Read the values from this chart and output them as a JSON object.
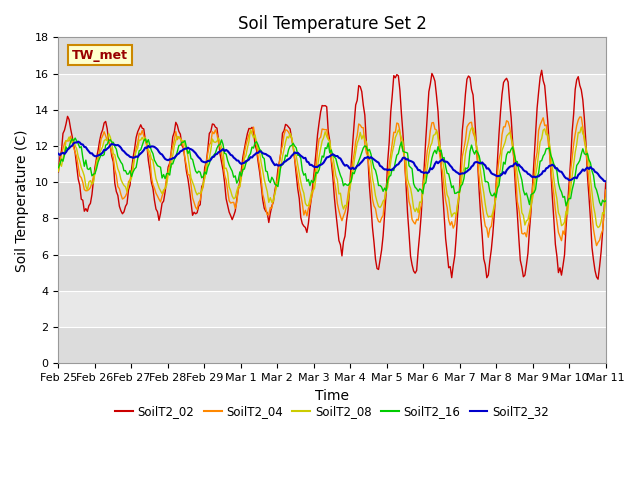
{
  "title": "Soil Temperature Set 2",
  "xlabel": "Time",
  "ylabel": "Soil Temperature (C)",
  "ylim": [
    0,
    18
  ],
  "yticks": [
    0,
    2,
    4,
    6,
    8,
    10,
    12,
    14,
    16,
    18
  ],
  "date_labels": [
    "Feb 25",
    "Feb 26",
    "Feb 27",
    "Feb 28",
    "Feb 29",
    "Mar 1",
    "Mar 2",
    "Mar 3",
    "Mar 4",
    "Mar 5",
    "Mar 6",
    "Mar 7",
    "Mar 8",
    "Mar 9",
    "Mar 10",
    "Mar 11"
  ],
  "annotation": "TW_met",
  "legend_labels": [
    "SoilT2_02",
    "SoilT2_04",
    "SoilT2_08",
    "SoilT2_16",
    "SoilT2_32"
  ],
  "colors": {
    "SoilT2_02": "#cc0000",
    "SoilT2_04": "#ff8800",
    "SoilT2_08": "#cccc00",
    "SoilT2_16": "#00cc00",
    "SoilT2_32": "#0000cc"
  },
  "title_fontsize": 12,
  "axis_fontsize": 10,
  "tick_fontsize": 8,
  "band_colors": [
    "#dcdcdc",
    "#e8e8e8"
  ]
}
